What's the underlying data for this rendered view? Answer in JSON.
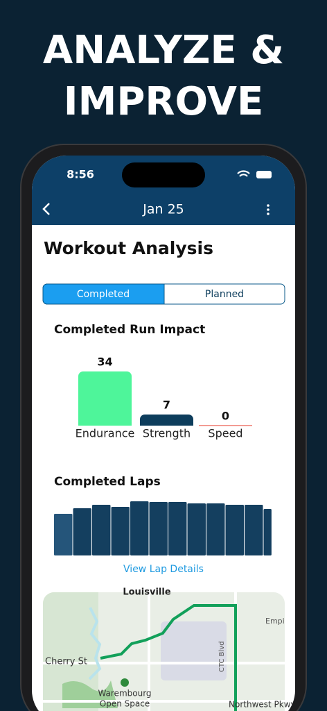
{
  "headline": [
    "ANALYZE &",
    "IMPROVE"
  ],
  "status": {
    "time": "8:56"
  },
  "nav": {
    "title": "Jan 25"
  },
  "page_title": "Workout Analysis",
  "tabs": [
    "Completed",
    "Planned"
  ],
  "impact": {
    "chart_data": {
      "type": "bar",
      "title": "Completed Run Impact",
      "categories": [
        "Endurance",
        "Strength",
        "Speed"
      ],
      "values": [
        34,
        7,
        0
      ],
      "colors": [
        "#4ef59a",
        "#0d3d5c",
        "#f08a80"
      ]
    }
  },
  "laps": {
    "chart_data": {
      "type": "bar",
      "title": "Completed Laps",
      "values": [
        60,
        68,
        73,
        70,
        78,
        77,
        77,
        75,
        75,
        73,
        73,
        67
      ],
      "distances": [
        1,
        1,
        1,
        1,
        1,
        1,
        1,
        1,
        1,
        1,
        1,
        0.45
      ],
      "colors": [
        "#25557a",
        "#143f5f"
      ]
    }
  },
  "link": "View Lap Details",
  "map": {
    "labels": [
      "Louisville",
      "Cherry St",
      "Warembourg",
      "Open Space",
      "CTC Blvd",
      "Northwest Pkwy",
      "Empi"
    ]
  }
}
